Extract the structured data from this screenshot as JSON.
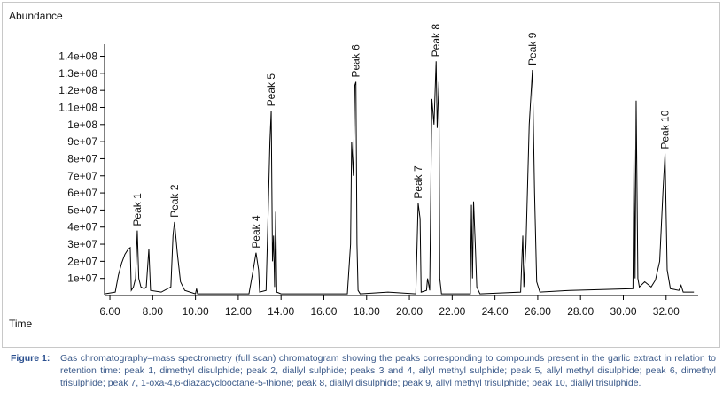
{
  "chart_data": {
    "type": "line",
    "y_label": "Abundance",
    "x_label": "Time",
    "color": "#000000",
    "x": [
      5.75,
      6.25,
      6.4,
      6.55,
      6.7,
      6.85,
      6.95,
      7.0,
      7.1,
      7.2,
      7.28,
      7.35,
      7.45,
      7.6,
      7.7,
      7.82,
      7.9,
      8.4,
      8.85,
      8.95,
      9.02,
      9.15,
      9.3,
      9.5,
      10.0,
      10.05,
      10.1,
      12.5,
      12.7,
      12.83,
      12.95,
      13.0,
      13.3,
      13.4,
      13.48,
      13.54,
      13.6,
      13.65,
      13.7,
      13.75,
      13.8,
      14.0,
      17.1,
      17.25,
      17.3,
      17.38,
      17.45,
      17.5,
      17.55,
      17.6,
      17.7,
      19.0,
      20.3,
      20.41,
      20.5,
      20.55,
      20.8,
      20.85,
      20.95,
      21.0,
      21.05,
      21.15,
      21.25,
      21.3,
      21.38,
      21.42,
      21.5,
      22.85,
      22.9,
      22.95,
      23.0,
      23.08,
      23.15,
      23.3,
      25.2,
      25.3,
      25.35,
      25.45,
      25.6,
      25.75,
      25.85,
      25.95,
      26.1,
      27.5,
      30.45,
      30.5,
      30.55,
      30.6,
      30.68,
      30.75,
      31.0,
      31.3,
      31.5,
      31.7,
      31.85,
      31.95,
      32.05,
      32.2,
      32.6,
      32.7,
      32.8,
      33.3
    ],
    "values": [
      1000000.0,
      2000000.0,
      12000000.0,
      19000000.0,
      24000000.0,
      27000000.0,
      28000000.0,
      3000000.0,
      5000000.0,
      10000000.0,
      38000000.0,
      10000000.0,
      5000000.0,
      4000000.0,
      5000000.0,
      27000000.0,
      3000000.0,
      2000000.0,
      5000000.0,
      35000000.0,
      43000000.0,
      25000000.0,
      8000000.0,
      3000000.0,
      1000000.0,
      4000000.0,
      1000000.0,
      1000000.0,
      15000000.0,
      25000000.0,
      15000000.0,
      2000000.0,
      3000000.0,
      50000000.0,
      90000000.0,
      108000000.0,
      20000000.0,
      35000000.0,
      5000000.0,
      49000000.0,
      2000000.0,
      1000000.0,
      1000000.0,
      30000000.0,
      90000000.0,
      70000000.0,
      123000000.0,
      125000000.0,
      30000000.0,
      3000000.0,
      1000000.0,
      2000000.0,
      1000000.0,
      54000000.0,
      45000000.0,
      2000000.0,
      3000000.0,
      10000000.0,
      3000000.0,
      60000000.0,
      115000000.0,
      100000000.0,
      137000000.0,
      98000000.0,
      125000000.0,
      10000000.0,
      1000000.0,
      1000000.0,
      53000000.0,
      10000000.0,
      55000000.0,
      30000000.0,
      5000000.0,
      1000000.0,
      2000000.0,
      35000000.0,
      5000000.0,
      30000000.0,
      100000000.0,
      132000000.0,
      60000000.0,
      8000000.0,
      2000000.0,
      3000000.0,
      4000000.0,
      85000000.0,
      10000000.0,
      114000000.0,
      10000000.0,
      5000000.0,
      8000000.0,
      5000000.0,
      9000000.0,
      20000000.0,
      60000000.0,
      83000000.0,
      15000000.0,
      4000000.0,
      3000000.0,
      6000000.0,
      2000000.0,
      2000000.0
    ],
    "xlim": [
      5.75,
      33.5
    ],
    "ylim": [
      0,
      147000000
    ],
    "xticks": [
      {
        "value": 6,
        "label": "6.00"
      },
      {
        "value": 8,
        "label": "8.00"
      },
      {
        "value": 10,
        "label": "10.00"
      },
      {
        "value": 12,
        "label": "12.00"
      },
      {
        "value": 14,
        "label": "14.00"
      },
      {
        "value": 16,
        "label": "16.00"
      },
      {
        "value": 18,
        "label": "18.00"
      },
      {
        "value": 20,
        "label": "20.00"
      },
      {
        "value": 22,
        "label": "22.00"
      },
      {
        "value": 24,
        "label": "24.00"
      },
      {
        "value": 26,
        "label": "26.00"
      },
      {
        "value": 28,
        "label": "28.00"
      },
      {
        "value": 30,
        "label": "30.00"
      },
      {
        "value": 32,
        "label": "32.00"
      }
    ],
    "yticks": [
      {
        "value": 10000000,
        "label": "1e+07"
      },
      {
        "value": 20000000,
        "label": "2e+07"
      },
      {
        "value": 30000000,
        "label": "3e+07"
      },
      {
        "value": 40000000,
        "label": "4e+07"
      },
      {
        "value": 50000000,
        "label": "5e+07"
      },
      {
        "value": 60000000,
        "label": "6e+07"
      },
      {
        "value": 70000000,
        "label": "7e+07"
      },
      {
        "value": 80000000,
        "label": "8e+07"
      },
      {
        "value": 90000000,
        "label": "9e+07"
      },
      {
        "value": 100000000,
        "label": "1e+08"
      },
      {
        "value": 110000000,
        "label": "1.1e+08"
      },
      {
        "value": 120000000,
        "label": "1.2e+08"
      },
      {
        "value": 130000000,
        "label": "1.3e+08"
      },
      {
        "value": 140000000,
        "label": "1.4e+08"
      }
    ],
    "annotations": [
      {
        "text": "Peak 1",
        "x": 7.28,
        "y": 38000000.0
      },
      {
        "text": "Peak 2",
        "x": 9.02,
        "y": 43000000.0
      },
      {
        "text": "Peak 4",
        "x": 12.83,
        "y": 25000000.0
      },
      {
        "text": "Peak 5",
        "x": 13.54,
        "y": 108000000.0
      },
      {
        "text": "Peak 6",
        "x": 17.5,
        "y": 125000000.0
      },
      {
        "text": "Peak 7",
        "x": 20.41,
        "y": 54000000.0
      },
      {
        "text": "Peak 8",
        "x": 21.25,
        "y": 137000000.0
      },
      {
        "text": "Peak 9",
        "x": 25.75,
        "y": 132000000.0
      },
      {
        "text": "Peak 10",
        "x": 31.95,
        "y": 83000000.0
      }
    ]
  },
  "caption": {
    "label": "Figure 1:",
    "text": "Gas chromatography–mass spectrometry (full scan) chromatogram showing the peaks corresponding to compounds present in the garlic extract in relation to retention time: peak 1, dimethyl disulphide; peak 2, diallyl sulphide; peaks 3 and 4, allyl methyl sulphide; peak 5, allyl methyl disulphide; peak 6, dimethyl trisulphide; peak 7, 1-oxa-4,6-diazacyclooctane-5-thione; peak 8, diallyl disulphide; peak 9, allyl methyl trisulphide; peak 10, diallyl trisulphide."
  }
}
